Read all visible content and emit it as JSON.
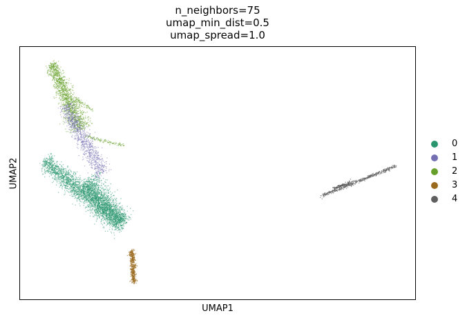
{
  "chart_data": {
    "type": "scatter",
    "title_lines": [
      "n_neighbors=75",
      "umap_min_dist=0.5",
      "umap_spread=1.0"
    ],
    "xlabel": "UMAP1",
    "ylabel": "UMAP2",
    "legend_position": "right",
    "grid": false,
    "series": [
      {
        "name": "0",
        "color": "#2a9670"
      },
      {
        "name": "1",
        "color": "#7570b3"
      },
      {
        "name": "2",
        "color": "#66a02a"
      },
      {
        "name": "3",
        "color": "#9a6a1e"
      },
      {
        "name": "4",
        "color": "#5f5f5f"
      }
    ]
  }
}
